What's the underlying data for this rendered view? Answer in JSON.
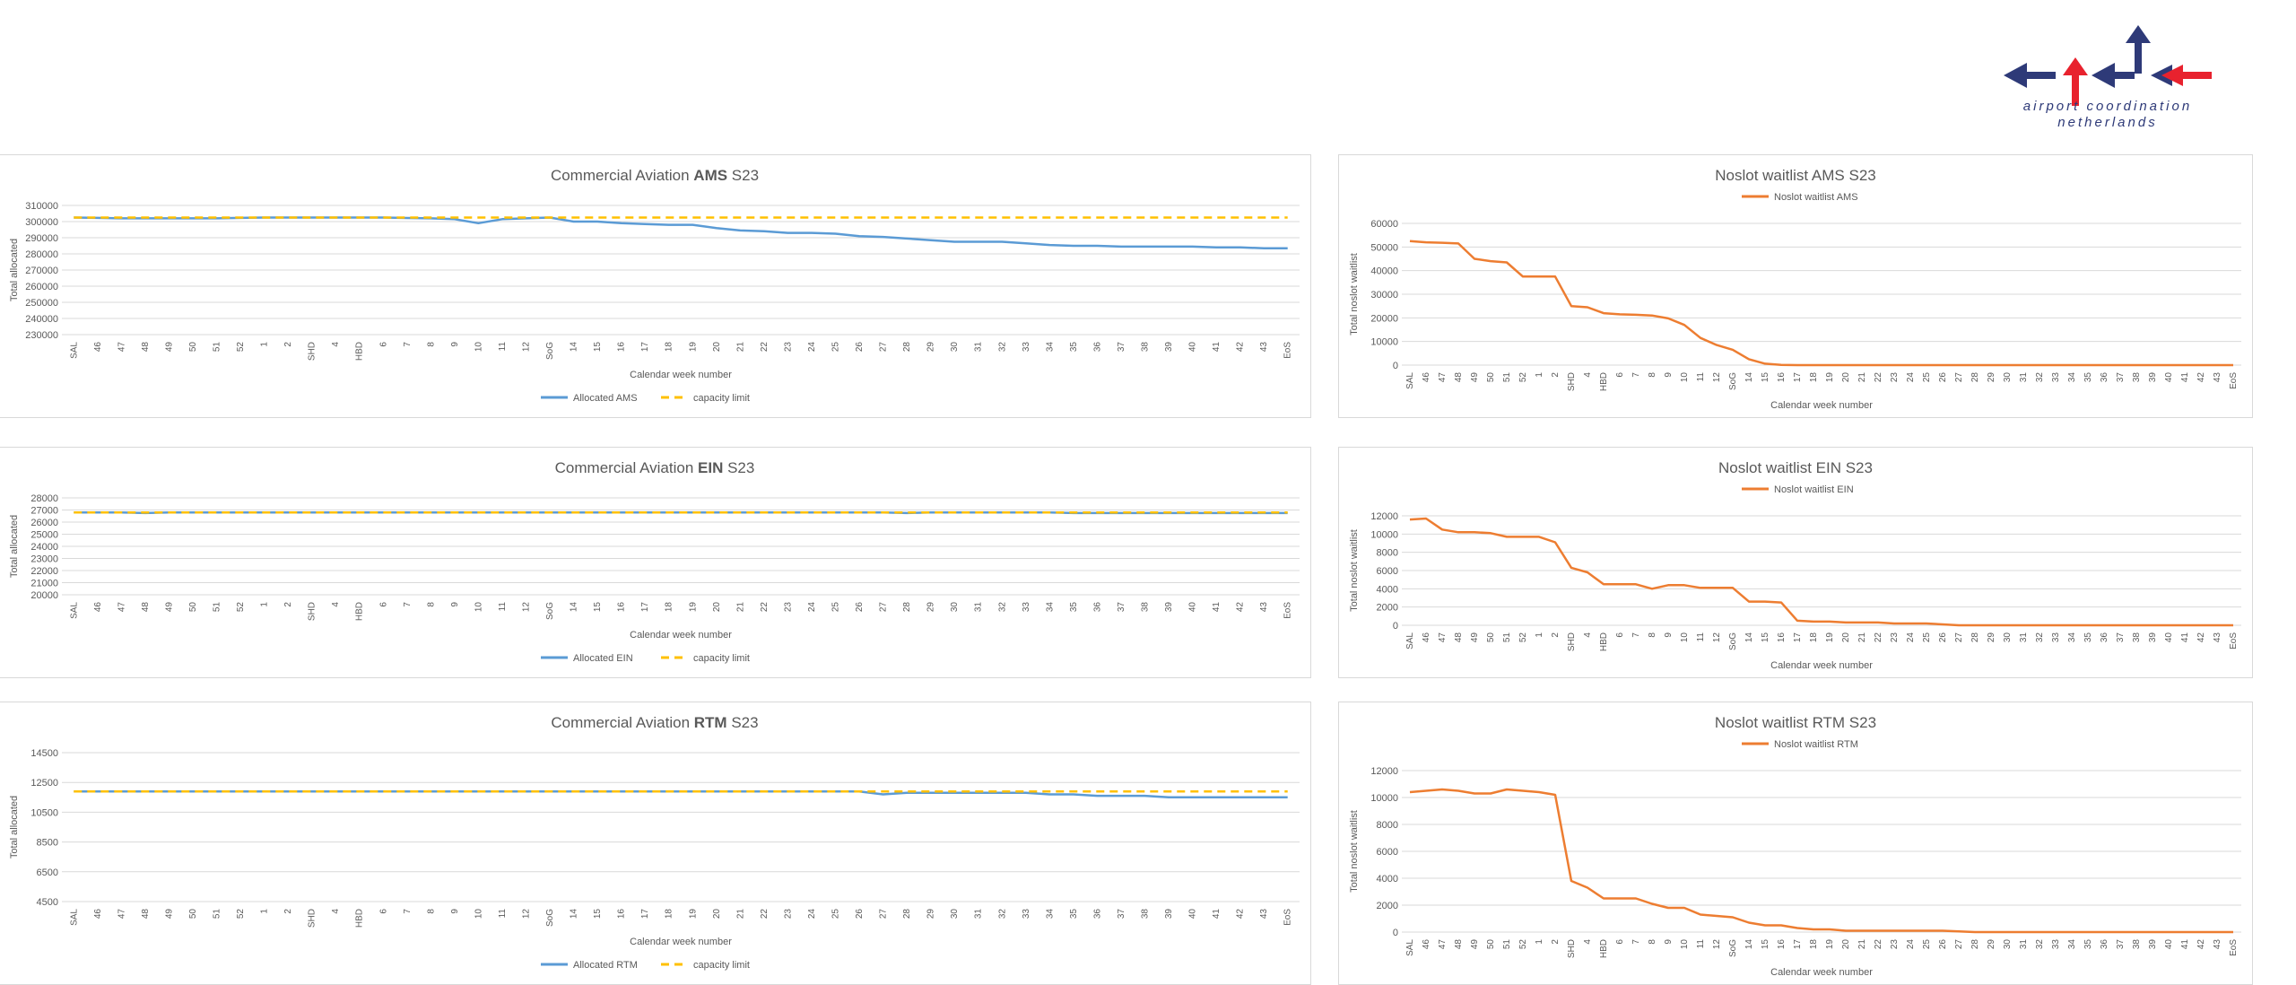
{
  "logo": {
    "line1": "airport coordination",
    "line2": "netherlands",
    "colors": {
      "navy": "#2e3a78",
      "red": "#e8222e"
    }
  },
  "weeks": [
    "SAL",
    "46",
    "47",
    "48",
    "49",
    "50",
    "51",
    "52",
    "1",
    "2",
    "SHD",
    "4",
    "HBD",
    "6",
    "7",
    "8",
    "9",
    "10",
    "11",
    "12",
    "SoG",
    "14",
    "15",
    "16",
    "17",
    "18",
    "19",
    "20",
    "21",
    "22",
    "23",
    "24",
    "25",
    "26",
    "27",
    "28",
    "29",
    "30",
    "31",
    "32",
    "33",
    "34",
    "35",
    "36",
    "37",
    "38",
    "39",
    "40",
    "41",
    "42",
    "43",
    "EoS"
  ],
  "chart_data": [
    {
      "id": "ams-allocated",
      "type": "line",
      "title_prefix": "Commercial Aviation ",
      "title_bold": "AMS",
      "title_suffix": " S23",
      "xlabel": "Calendar week number",
      "ylabel": "Total allocated",
      "ylim": [
        230000,
        310000
      ],
      "yticks": [
        "230000",
        "240000",
        "250000",
        "260000",
        "270000",
        "280000",
        "290000",
        "300000",
        "310000"
      ],
      "legend_position": "bottom",
      "grid": true,
      "series": [
        {
          "name": "Allocated AMS",
          "color": "#5b9bd5",
          "dash": false,
          "values": [
            302500,
            302300,
            302000,
            302000,
            302000,
            302000,
            302000,
            302300,
            302500,
            302500,
            302500,
            302500,
            302500,
            302500,
            302200,
            302000,
            301500,
            299000,
            301500,
            302000,
            302500,
            300000,
            300000,
            299000,
            298500,
            298000,
            298000,
            296000,
            294500,
            294000,
            293000,
            293000,
            292500,
            291000,
            290500,
            289500,
            288500,
            287500,
            287500,
            287500,
            286500,
            285500,
            285000,
            285000,
            284500,
            284500,
            284500,
            284500,
            284000,
            284000,
            283500,
            283500
          ]
        },
        {
          "name": "capacity limit",
          "color": "#ffc000",
          "dash": true,
          "values": [
            302500,
            302500,
            302500,
            302500,
            302500,
            302500,
            302500,
            302500,
            302500,
            302500,
            302500,
            302500,
            302500,
            302500,
            302500,
            302500,
            302500,
            302500,
            302500,
            302500,
            302500,
            302500,
            302500,
            302500,
            302500,
            302500,
            302500,
            302500,
            302500,
            302500,
            302500,
            302500,
            302500,
            302500,
            302500,
            302500,
            302500,
            302500,
            302500,
            302500,
            302500,
            302500,
            302500,
            302500,
            302500,
            302500,
            302500,
            302500,
            302500,
            302500,
            302500,
            302500
          ]
        }
      ]
    },
    {
      "id": "ams-waitlist",
      "type": "line",
      "title_prefix": "Noslot waitlist AMS S23",
      "title_bold": "",
      "title_suffix": "",
      "xlabel": "Calendar week number",
      "ylabel": "Total noslot waitlist",
      "ylim": [
        0,
        60000
      ],
      "yticks": [
        "0",
        "10000",
        "20000",
        "30000",
        "40000",
        "50000",
        "60000"
      ],
      "legend_position": "top",
      "grid": true,
      "series": [
        {
          "name": "Noslot waitlist AMS",
          "color": "#ed7d31",
          "dash": false,
          "values": [
            52500,
            52000,
            51800,
            51500,
            45000,
            44000,
            43500,
            37500,
            37500,
            37500,
            25000,
            24500,
            22000,
            21500,
            21300,
            21000,
            19800,
            17000,
            11500,
            8500,
            6500,
            2500,
            600,
            100,
            0,
            0,
            0,
            0,
            0,
            0,
            0,
            0,
            0,
            0,
            0,
            0,
            0,
            0,
            0,
            0,
            0,
            0,
            0,
            0,
            0,
            0,
            0,
            0,
            0,
            0,
            0,
            0
          ]
        }
      ]
    },
    {
      "id": "ein-allocated",
      "type": "line",
      "title_prefix": "Commercial Aviation ",
      "title_bold": "EIN",
      "title_suffix": " S23",
      "xlabel": "Calendar week number",
      "ylabel": "Total allocated",
      "ylim": [
        20000,
        28000
      ],
      "yticks": [
        "20000",
        "21000",
        "22000",
        "23000",
        "24000",
        "25000",
        "26000",
        "27000",
        "28000"
      ],
      "legend_position": "bottom",
      "grid": true,
      "series": [
        {
          "name": "Allocated EIN",
          "color": "#5b9bd5",
          "dash": false,
          "values": [
            26800,
            26800,
            26800,
            26750,
            26800,
            26800,
            26800,
            26800,
            26800,
            26800,
            26800,
            26800,
            26800,
            26800,
            26800,
            26800,
            26800,
            26800,
            26800,
            26800,
            26800,
            26800,
            26800,
            26800,
            26800,
            26800,
            26800,
            26800,
            26800,
            26800,
            26800,
            26800,
            26800,
            26800,
            26800,
            26750,
            26800,
            26800,
            26800,
            26800,
            26800,
            26800,
            26750,
            26750,
            26750,
            26750,
            26750,
            26750,
            26750,
            26750,
            26750,
            26750
          ]
        },
        {
          "name": "capacity limit",
          "color": "#ffc000",
          "dash": true,
          "values": [
            26800,
            26800,
            26800,
            26800,
            26800,
            26800,
            26800,
            26800,
            26800,
            26800,
            26800,
            26800,
            26800,
            26800,
            26800,
            26800,
            26800,
            26800,
            26800,
            26800,
            26800,
            26800,
            26800,
            26800,
            26800,
            26800,
            26800,
            26800,
            26800,
            26800,
            26800,
            26800,
            26800,
            26800,
            26800,
            26800,
            26800,
            26800,
            26800,
            26800,
            26800,
            26800,
            26800,
            26800,
            26800,
            26800,
            26800,
            26800,
            26800,
            26800,
            26800,
            26800
          ]
        }
      ]
    },
    {
      "id": "ein-waitlist",
      "type": "line",
      "title_prefix": "Noslot waitlist EIN S23",
      "title_bold": "",
      "title_suffix": "",
      "xlabel": "Calendar week number",
      "ylabel": "Total noslot waitlist",
      "ylim": [
        0,
        12000
      ],
      "yticks": [
        "0",
        "2000",
        "4000",
        "6000",
        "8000",
        "10000",
        "12000"
      ],
      "legend_position": "top",
      "grid": true,
      "series": [
        {
          "name": "Noslot waitlist EIN",
          "color": "#ed7d31",
          "dash": false,
          "values": [
            11600,
            11700,
            10500,
            10200,
            10200,
            10100,
            9700,
            9700,
            9700,
            9100,
            6300,
            5800,
            4500,
            4500,
            4500,
            4000,
            4400,
            4400,
            4100,
            4100,
            4100,
            2600,
            2600,
            2500,
            500,
            400,
            400,
            300,
            300,
            300,
            200,
            200,
            200,
            100,
            0,
            0,
            0,
            0,
            0,
            0,
            0,
            0,
            0,
            0,
            0,
            0,
            0,
            0,
            0,
            0,
            0,
            0
          ]
        }
      ]
    },
    {
      "id": "rtm-allocated",
      "type": "line",
      "title_prefix": "Commercial Aviation ",
      "title_bold": "RTM",
      "title_suffix": " S23",
      "xlabel": "Calendar week number",
      "ylabel": "Total allocated",
      "ylim": [
        4500,
        14500
      ],
      "yticks": [
        "4500",
        "6500",
        "8500",
        "10500",
        "12500",
        "14500"
      ],
      "legend_position": "bottom",
      "grid": true,
      "series": [
        {
          "name": "Allocated RTM",
          "color": "#5b9bd5",
          "dash": false,
          "values": [
            11900,
            11900,
            11900,
            11900,
            11900,
            11900,
            11900,
            11900,
            11900,
            11900,
            11900,
            11900,
            11900,
            11900,
            11900,
            11900,
            11900,
            11900,
            11900,
            11900,
            11900,
            11900,
            11900,
            11900,
            11900,
            11900,
            11900,
            11900,
            11900,
            11900,
            11900,
            11900,
            11900,
            11900,
            11700,
            11800,
            11800,
            11800,
            11800,
            11800,
            11800,
            11700,
            11700,
            11600,
            11600,
            11600,
            11500,
            11500,
            11500,
            11500,
            11500,
            11500
          ]
        },
        {
          "name": "capacity limit",
          "color": "#ffc000",
          "dash": true,
          "values": [
            11900,
            11900,
            11900,
            11900,
            11900,
            11900,
            11900,
            11900,
            11900,
            11900,
            11900,
            11900,
            11900,
            11900,
            11900,
            11900,
            11900,
            11900,
            11900,
            11900,
            11900,
            11900,
            11900,
            11900,
            11900,
            11900,
            11900,
            11900,
            11900,
            11900,
            11900,
            11900,
            11900,
            11900,
            11900,
            11900,
            11900,
            11900,
            11900,
            11900,
            11900,
            11900,
            11900,
            11900,
            11900,
            11900,
            11900,
            11900,
            11900,
            11900,
            11900,
            11900
          ]
        }
      ]
    },
    {
      "id": "rtm-waitlist",
      "type": "line",
      "title_prefix": "Noslot waitlist RTM S23",
      "title_bold": "",
      "title_suffix": "",
      "xlabel": "Calendar week number",
      "ylabel": "Total noslot waitlist",
      "ylim": [
        0,
        12000
      ],
      "yticks": [
        "0",
        "2000",
        "4000",
        "6000",
        "8000",
        "10000",
        "12000"
      ],
      "legend_position": "top",
      "grid": true,
      "series": [
        {
          "name": "Noslot waitlist RTM",
          "color": "#ed7d31",
          "dash": false,
          "values": [
            10400,
            10500,
            10600,
            10500,
            10300,
            10300,
            10600,
            10500,
            10400,
            10200,
            3800,
            3300,
            2500,
            2500,
            2500,
            2100,
            1800,
            1800,
            1300,
            1200,
            1100,
            700,
            500,
            500,
            300,
            200,
            200,
            100,
            100,
            100,
            100,
            100,
            100,
            100,
            50,
            0,
            0,
            0,
            0,
            0,
            0,
            0,
            0,
            0,
            0,
            0,
            0,
            0,
            0,
            0,
            0,
            0
          ]
        }
      ]
    }
  ]
}
